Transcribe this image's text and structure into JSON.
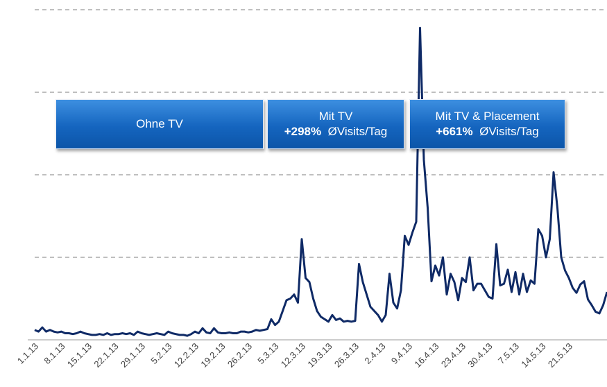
{
  "chart_data": {
    "type": "line",
    "categories": [
      "1.1.13",
      null,
      null,
      null,
      null,
      null,
      null,
      "8.1.13",
      null,
      null,
      null,
      null,
      null,
      null,
      "15.1.13",
      null,
      null,
      null,
      null,
      null,
      null,
      "22.1.13",
      null,
      null,
      null,
      null,
      null,
      null,
      "29.1.13",
      null,
      null,
      null,
      null,
      null,
      null,
      "5.2.13",
      null,
      null,
      null,
      null,
      null,
      null,
      "12.2.13",
      null,
      null,
      null,
      null,
      null,
      null,
      "19.2.13",
      null,
      null,
      null,
      null,
      null,
      null,
      "26.2.13",
      null,
      null,
      null,
      null,
      null,
      null,
      "5.3.13",
      null,
      null,
      null,
      null,
      null,
      null,
      "12.3.13",
      null,
      null,
      null,
      null,
      null,
      null,
      "19.3.13",
      null,
      null,
      null,
      null,
      null,
      null,
      "26.3.13",
      null,
      null,
      null,
      null,
      null,
      null,
      "2.4.13",
      null,
      null,
      null,
      null,
      null,
      null,
      "9.4.13",
      null,
      null,
      null,
      null,
      null,
      null,
      "16.4.13",
      null,
      null,
      null,
      null,
      null,
      null,
      "23.4.13",
      null,
      null,
      null,
      null,
      null,
      null,
      "30.4.13",
      null,
      null,
      null,
      null,
      null,
      null,
      "7.5.13",
      null,
      null,
      null,
      null,
      null,
      null,
      "14.5.13",
      null,
      null,
      null,
      null,
      null,
      null,
      "21.5.13",
      null,
      null,
      null,
      null,
      null,
      null,
      null,
      null,
      null,
      null
    ],
    "values": [
      0.12,
      0.1,
      0.15,
      0.1,
      0.12,
      0.1,
      0.09,
      0.1,
      0.08,
      0.08,
      0.07,
      0.08,
      0.1,
      0.08,
      0.07,
      0.06,
      0.06,
      0.07,
      0.06,
      0.08,
      0.06,
      0.07,
      0.07,
      0.08,
      0.07,
      0.08,
      0.06,
      0.1,
      0.08,
      0.07,
      0.06,
      0.07,
      0.08,
      0.07,
      0.06,
      0.1,
      0.08,
      0.07,
      0.06,
      0.06,
      0.05,
      0.07,
      0.1,
      0.08,
      0.14,
      0.09,
      0.08,
      0.14,
      0.09,
      0.08,
      0.08,
      0.09,
      0.08,
      0.08,
      0.1,
      0.1,
      0.09,
      0.1,
      0.12,
      0.11,
      0.12,
      0.13,
      0.25,
      0.18,
      0.22,
      0.35,
      0.48,
      0.5,
      0.55,
      0.45,
      1.22,
      0.75,
      0.7,
      0.5,
      0.35,
      0.28,
      0.25,
      0.22,
      0.3,
      0.24,
      0.26,
      0.22,
      0.23,
      0.22,
      0.23,
      0.92,
      0.7,
      0.55,
      0.4,
      0.35,
      0.3,
      0.22,
      0.3,
      0.8,
      0.45,
      0.38,
      0.6,
      1.26,
      1.15,
      1.3,
      1.43,
      3.78,
      2.18,
      1.6,
      0.71,
      0.9,
      0.78,
      1.0,
      0.55,
      0.8,
      0.7,
      0.48,
      0.75,
      0.7,
      1.0,
      0.6,
      0.68,
      0.68,
      0.6,
      0.52,
      0.5,
      1.16,
      0.66,
      0.68,
      0.85,
      0.58,
      0.82,
      0.55,
      0.8,
      0.58,
      0.72,
      0.68,
      1.34,
      1.26,
      1.0,
      1.22,
      2.03,
      1.6,
      1.0,
      0.84,
      0.75,
      0.63,
      0.57,
      0.67,
      0.71,
      0.49,
      0.42,
      0.34,
      0.32,
      0.42,
      0.58
    ],
    "color": "#0f2a66",
    "ylim": [
      0,
      4
    ],
    "yticks": [
      0,
      1,
      2,
      3,
      4
    ],
    "grid": true,
    "annotations": [
      {
        "title": "Ohne TV"
      },
      {
        "title": "Mit TV",
        "bold": "+298%",
        "rest": "ØVisits/Tag"
      },
      {
        "title": "Mit TV & Placement",
        "bold": "+661%",
        "rest": "ØVisits/Tag"
      }
    ]
  }
}
